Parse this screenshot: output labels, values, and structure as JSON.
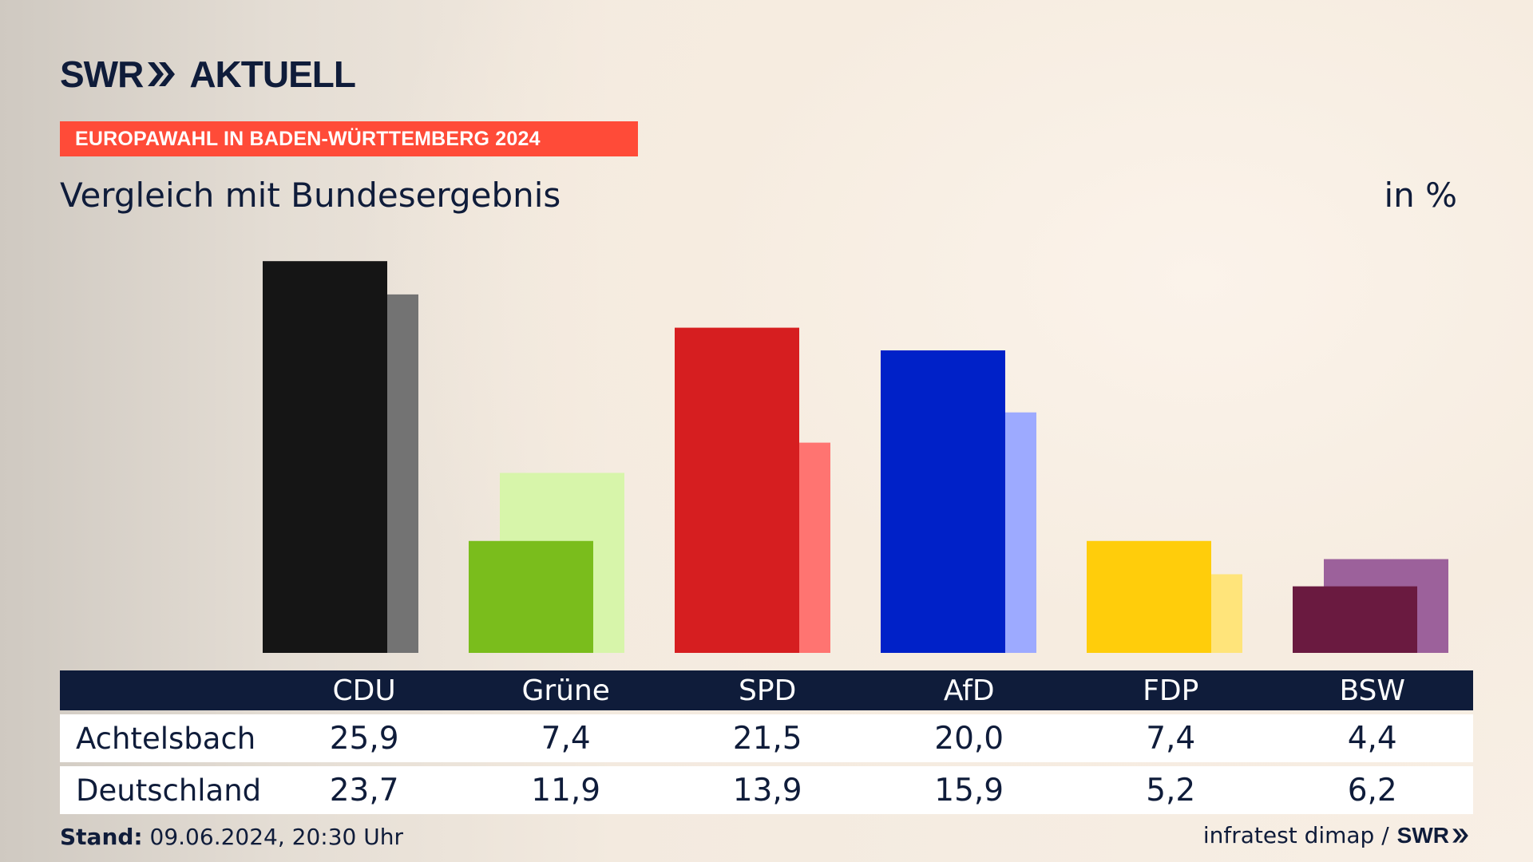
{
  "brand": {
    "logo_text_a": "SWR",
    "logo_text_b": "AKTUELL",
    "icon": "double-chevron-right-icon"
  },
  "banner": {
    "text": "EUROPAWAHL IN BADEN-WÜRTTEMBERG 2024",
    "color": "#ff4b38"
  },
  "chart_data": {
    "type": "bar",
    "title": "Vergleich mit Bundesergebnis",
    "unit": "in %",
    "categories": [
      "CDU",
      "Grüne",
      "SPD",
      "AfD",
      "FDP",
      "BSW"
    ],
    "series": [
      {
        "name": "Achtelsbach",
        "values": [
          25.9,
          7.4,
          21.5,
          20.0,
          7.4,
          4.4
        ],
        "labels": [
          "25,9",
          "7,4",
          "21,5",
          "20,0",
          "7,4",
          "4,4"
        ],
        "colors": [
          "#151515",
          "#7abd1c",
          "#d61e20",
          "#0021c8",
          "#ffcd0b",
          "#6a1a40"
        ]
      },
      {
        "name": "Deutschland",
        "values": [
          23.7,
          11.9,
          13.9,
          15.9,
          5.2,
          6.2
        ],
        "labels": [
          "23,7",
          "11,9",
          "13,9",
          "15,9",
          "5,2",
          "6,2"
        ],
        "colors": [
          "#737373",
          "#d7f5aa",
          "#ff7471",
          "#9daaff",
          "#ffe47a",
          "#9c619b"
        ]
      }
    ],
    "ylim": [
      0,
      26
    ]
  },
  "table": {
    "header": [
      "CDU",
      "Grüne",
      "SPD",
      "AfD",
      "FDP",
      "BSW"
    ],
    "header_bg": "#0f1c3a"
  },
  "footer": {
    "stand_label": "Stand:",
    "stand_value": "09.06.2024, 20:30 Uhr",
    "source": "infratest dimap /",
    "source_brand": "SWR"
  }
}
